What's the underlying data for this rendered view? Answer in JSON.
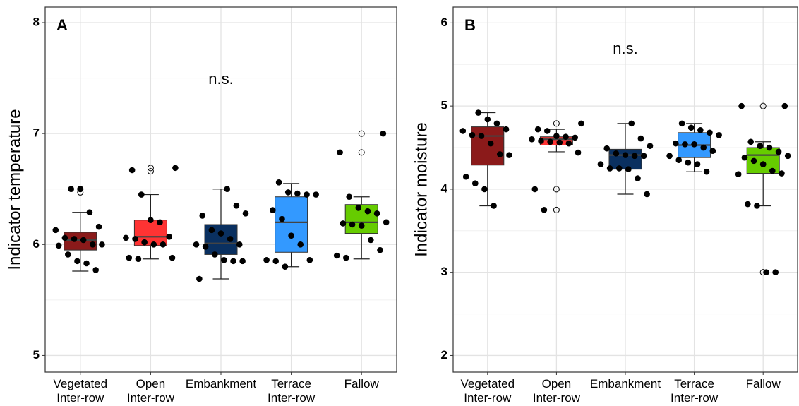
{
  "chart_data": [
    {
      "type": "box",
      "label": "A",
      "annotation": "n.s.",
      "ylabel": "Indicator temperature",
      "categories": [
        [
          "Vegetated",
          "Inter-row"
        ],
        [
          "Open",
          "Inter-row"
        ],
        [
          "Embankment"
        ],
        [
          "Terrace",
          "Inter-row"
        ],
        [
          "Fallow"
        ]
      ],
      "colors": [
        "#8b1a1a",
        "#ff3333",
        "#0a3060",
        "#3399ff",
        "#66cc00"
      ],
      "ylim": [
        4.85,
        8.14
      ],
      "yticks": [
        5,
        6,
        7,
        8
      ],
      "yminor": [
        5.5,
        6.5,
        7.5
      ],
      "grid": true,
      "boxes": [
        {
          "whislo": 5.76,
          "q1": 5.95,
          "med": 6.04,
          "q3": 6.11,
          "whishi": 6.29,
          "outliers": [
            6.5,
            6.47
          ]
        },
        {
          "whislo": 5.87,
          "q1": 5.99,
          "med": 6.07,
          "q3": 6.22,
          "whishi": 6.45,
          "outliers": [
            6.69,
            6.66
          ]
        },
        {
          "whislo": 5.69,
          "q1": 5.91,
          "med": 6.01,
          "q3": 6.18,
          "whishi": 6.5,
          "outliers": []
        },
        {
          "whislo": 5.8,
          "q1": 5.93,
          "med": 6.2,
          "q3": 6.43,
          "whishi": 6.55,
          "outliers": []
        },
        {
          "whislo": 5.87,
          "q1": 6.1,
          "med": 6.2,
          "q3": 6.36,
          "whishi": 6.43,
          "outliers": [
            7.0,
            6.83
          ]
        }
      ],
      "points": [
        [
          6.5,
          6.5,
          6.29,
          6.16,
          6.13,
          6.06,
          6.05,
          6.04,
          6.0,
          6.0,
          5.99,
          5.91,
          5.85,
          5.83,
          5.77
        ],
        [
          6.69,
          6.67,
          6.45,
          6.22,
          6.2,
          6.07,
          6.06,
          6.05,
          6.02,
          6.0,
          6.0,
          5.88,
          5.88,
          5.87
        ],
        [
          6.5,
          6.35,
          6.28,
          6.26,
          6.13,
          6.1,
          6.05,
          6.0,
          6.0,
          5.98,
          5.91,
          5.86,
          5.85,
          5.85,
          5.69
        ],
        [
          6.56,
          6.47,
          6.46,
          6.45,
          6.45,
          6.31,
          6.23,
          6.08,
          6.0,
          5.86,
          5.86,
          5.85,
          5.8
        ],
        [
          7.0,
          6.83,
          6.43,
          6.33,
          6.3,
          6.28,
          6.2,
          6.19,
          6.18,
          6.17,
          6.04,
          5.95,
          5.9,
          5.88
        ]
      ]
    },
    {
      "type": "box",
      "label": "B",
      "annotation": "n.s.",
      "ylabel": "Indicator moisture",
      "categories": [
        [
          "Vegetated",
          "Inter-row"
        ],
        [
          "Open",
          "Inter-row"
        ],
        [
          "Embankment"
        ],
        [
          "Terrace",
          "Inter-row"
        ],
        [
          "Fallow"
        ]
      ],
      "colors": [
        "#8b1a1a",
        "#ff3333",
        "#0a3060",
        "#3399ff",
        "#66cc00"
      ],
      "ylim": [
        1.8,
        6.19
      ],
      "yticks": [
        2,
        3,
        4,
        5,
        6
      ],
      "yminor": [
        2.5,
        3.5,
        4.5,
        5.5
      ],
      "grid": true,
      "boxes": [
        {
          "whislo": 3.8,
          "q1": 4.29,
          "med": 4.64,
          "q3": 4.75,
          "whishi": 4.92,
          "outliers": []
        },
        {
          "whislo": 4.45,
          "q1": 4.53,
          "med": 4.6,
          "q3": 4.63,
          "whishi": 4.72,
          "outliers": [
            4.79,
            4.0,
            3.75
          ]
        },
        {
          "whislo": 3.94,
          "q1": 4.24,
          "med": 4.41,
          "q3": 4.48,
          "whishi": 4.79,
          "outliers": []
        },
        {
          "whislo": 4.21,
          "q1": 4.38,
          "med": 4.53,
          "q3": 4.68,
          "whishi": 4.79,
          "outliers": []
        },
        {
          "whislo": 3.8,
          "q1": 4.19,
          "med": 4.41,
          "q3": 4.5,
          "whishi": 4.57,
          "outliers": [
            5.0,
            3.0
          ]
        }
      ],
      "points": [
        [
          4.92,
          4.84,
          4.79,
          4.72,
          4.7,
          4.65,
          4.64,
          4.55,
          4.42,
          4.41,
          4.15,
          4.07,
          4.0,
          3.8
        ],
        [
          4.79,
          4.72,
          4.7,
          4.64,
          4.63,
          4.62,
          4.6,
          4.58,
          4.57,
          4.56,
          4.55,
          4.44,
          4.0,
          3.75
        ],
        [
          4.79,
          4.61,
          4.52,
          4.49,
          4.43,
          4.41,
          4.4,
          4.4,
          4.3,
          4.25,
          4.25,
          4.24,
          4.13,
          3.94
        ],
        [
          4.79,
          4.74,
          4.71,
          4.68,
          4.65,
          4.55,
          4.54,
          4.54,
          4.5,
          4.46,
          4.4,
          4.35,
          4.32,
          4.3,
          4.21
        ],
        [
          5.0,
          5.0,
          4.57,
          4.52,
          4.5,
          4.45,
          4.4,
          4.38,
          4.34,
          4.3,
          4.22,
          4.19,
          4.18,
          3.82,
          3.8,
          3.0,
          3.0
        ]
      ]
    }
  ]
}
